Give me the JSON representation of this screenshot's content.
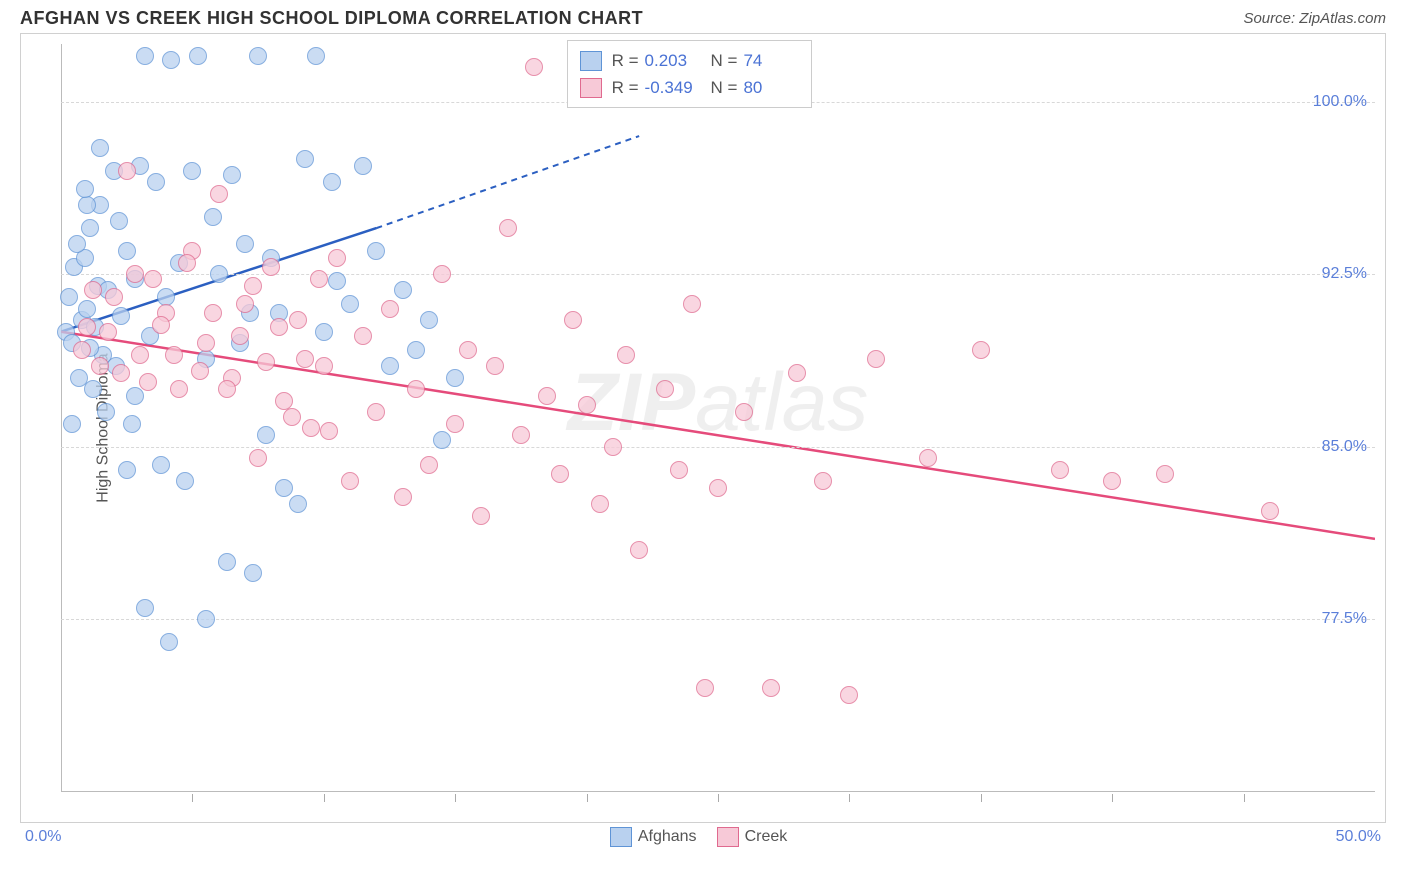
{
  "title": "AFGHAN VS CREEK HIGH SCHOOL DIPLOMA CORRELATION CHART",
  "source": "Source: ZipAtlas.com",
  "ylabel": "High School Diploma",
  "watermark_bold": "ZIP",
  "watermark_rest": "atlas",
  "chart": {
    "type": "scatter",
    "xlim": [
      0,
      50
    ],
    "ylim": [
      70,
      102.5
    ],
    "xtick_step": 5,
    "x_axis_min_label": "0.0%",
    "x_axis_max_label": "50.0%",
    "ytick_labels": [
      "77.5%",
      "85.0%",
      "92.5%",
      "100.0%"
    ],
    "ytick_values": [
      77.5,
      85.0,
      92.5,
      100.0
    ],
    "grid_color": "#d8d8d8",
    "background_color": "#ffffff",
    "marker_size": 18,
    "series": [
      {
        "name": "Afghans",
        "legend_label": "Afghans",
        "color_fill": "#b9d1ef",
        "color_stroke": "#5f94d6",
        "r_value": "0.203",
        "n_value": "74",
        "trend": {
          "x1": 0,
          "y1": 90,
          "x2": 12,
          "y2": 94.5,
          "dash_to_x": 22,
          "dash_to_y": 98.5,
          "color": "#2b5fc1"
        },
        "points": [
          [
            0.2,
            90
          ],
          [
            0.3,
            91.5
          ],
          [
            0.4,
            89.5
          ],
          [
            0.5,
            92.8
          ],
          [
            0.7,
            88
          ],
          [
            0.8,
            90.5
          ],
          [
            0.9,
            93.2
          ],
          [
            1.0,
            91
          ],
          [
            1.1,
            94.5
          ],
          [
            1.2,
            87.5
          ],
          [
            1.3,
            90.2
          ],
          [
            1.4,
            92
          ],
          [
            1.5,
            95.5
          ],
          [
            1.6,
            89
          ],
          [
            1.8,
            91.8
          ],
          [
            2.0,
            97
          ],
          [
            2.1,
            88.5
          ],
          [
            2.3,
            90.7
          ],
          [
            2.5,
            93.5
          ],
          [
            2.7,
            86
          ],
          [
            2.8,
            92.3
          ],
          [
            3.0,
            97.2
          ],
          [
            3.2,
            102
          ],
          [
            3.4,
            89.8
          ],
          [
            3.6,
            96.5
          ],
          [
            3.8,
            84.2
          ],
          [
            4.0,
            91.5
          ],
          [
            4.2,
            101.8
          ],
          [
            4.5,
            93
          ],
          [
            4.7,
            83.5
          ],
          [
            5.0,
            97
          ],
          [
            5.2,
            102
          ],
          [
            5.5,
            88.8
          ],
          [
            5.8,
            95
          ],
          [
            6.0,
            92.5
          ],
          [
            6.3,
            80
          ],
          [
            6.5,
            96.8
          ],
          [
            6.8,
            89.5
          ],
          [
            7.0,
            93.8
          ],
          [
            7.3,
            79.5
          ],
          [
            7.5,
            102
          ],
          [
            7.8,
            85.5
          ],
          [
            8.0,
            93.2
          ],
          [
            8.3,
            90.8
          ],
          [
            8.5,
            83.2
          ],
          [
            9.0,
            82.5
          ],
          [
            9.3,
            97.5
          ],
          [
            9.7,
            102
          ],
          [
            10.0,
            90
          ],
          [
            10.3,
            96.5
          ],
          [
            10.5,
            92.2
          ],
          [
            11.0,
            91.2
          ],
          [
            11.5,
            97.2
          ],
          [
            12.0,
            93.5
          ],
          [
            12.5,
            88.5
          ],
          [
            13.0,
            91.8
          ],
          [
            13.5,
            89.2
          ],
          [
            14.0,
            90.5
          ],
          [
            14.5,
            85.3
          ],
          [
            15.0,
            88
          ],
          [
            2.5,
            84
          ],
          [
            3.2,
            78
          ],
          [
            4.1,
            76.5
          ],
          [
            1.0,
            95.5
          ],
          [
            1.5,
            98
          ],
          [
            0.6,
            93.8
          ],
          [
            0.9,
            96.2
          ],
          [
            2.2,
            94.8
          ],
          [
            1.7,
            86.5
          ],
          [
            2.8,
            87.2
          ],
          [
            5.5,
            77.5
          ],
          [
            7.2,
            90.8
          ],
          [
            0.4,
            86
          ],
          [
            1.1,
            89.3
          ]
        ]
      },
      {
        "name": "Creek",
        "legend_label": "Creek",
        "color_fill": "#f7c9d7",
        "color_stroke": "#e06a8f",
        "r_value": "-0.349",
        "n_value": "80",
        "trend": {
          "x1": 0,
          "y1": 90,
          "x2": 50,
          "y2": 81,
          "color": "#e54b7b"
        },
        "points": [
          [
            1.0,
            90.2
          ],
          [
            1.5,
            88.5
          ],
          [
            2.0,
            91.5
          ],
          [
            2.5,
            97
          ],
          [
            3.0,
            89
          ],
          [
            3.5,
            92.3
          ],
          [
            4.0,
            90.8
          ],
          [
            4.5,
            87.5
          ],
          [
            5.0,
            93.5
          ],
          [
            5.5,
            89.5
          ],
          [
            6.0,
            96
          ],
          [
            6.5,
            88
          ],
          [
            7.0,
            91.2
          ],
          [
            7.5,
            84.5
          ],
          [
            8.0,
            92.8
          ],
          [
            8.5,
            87
          ],
          [
            9.0,
            90.5
          ],
          [
            9.5,
            85.8
          ],
          [
            10.0,
            88.5
          ],
          [
            10.5,
            93.2
          ],
          [
            11.0,
            83.5
          ],
          [
            11.5,
            89.8
          ],
          [
            12.0,
            86.5
          ],
          [
            12.5,
            91
          ],
          [
            13.0,
            82.8
          ],
          [
            13.5,
            87.5
          ],
          [
            14.0,
            84.2
          ],
          [
            14.5,
            92.5
          ],
          [
            15.0,
            86
          ],
          [
            15.5,
            89.2
          ],
          [
            16.0,
            82
          ],
          [
            16.5,
            88.5
          ],
          [
            17.0,
            94.5
          ],
          [
            17.5,
            85.5
          ],
          [
            18.0,
            101.5
          ],
          [
            18.5,
            87.2
          ],
          [
            19.0,
            83.8
          ],
          [
            19.5,
            90.5
          ],
          [
            20.0,
            86.8
          ],
          [
            20.5,
            82.5
          ],
          [
            21.0,
            85
          ],
          [
            21.5,
            89
          ],
          [
            22.0,
            80.5
          ],
          [
            23.0,
            87.5
          ],
          [
            23.5,
            84
          ],
          [
            24.0,
            91.2
          ],
          [
            25.0,
            83.2
          ],
          [
            26.0,
            86.5
          ],
          [
            27.0,
            74.5
          ],
          [
            28.0,
            88.2
          ],
          [
            29.0,
            83.5
          ],
          [
            30.0,
            74.2
          ],
          [
            31.0,
            88.8
          ],
          [
            33.0,
            84.5
          ],
          [
            35.0,
            89.2
          ],
          [
            38.0,
            84
          ],
          [
            40.0,
            83.5
          ],
          [
            42.0,
            83.8
          ],
          [
            46.0,
            82.2
          ],
          [
            0.8,
            89.2
          ],
          [
            1.2,
            91.8
          ],
          [
            1.8,
            90
          ],
          [
            2.3,
            88.2
          ],
          [
            2.8,
            92.5
          ],
          [
            3.3,
            87.8
          ],
          [
            3.8,
            90.3
          ],
          [
            4.3,
            89
          ],
          [
            4.8,
            93
          ],
          [
            5.3,
            88.3
          ],
          [
            5.8,
            90.8
          ],
          [
            6.3,
            87.5
          ],
          [
            6.8,
            89.8
          ],
          [
            7.3,
            92
          ],
          [
            7.8,
            88.7
          ],
          [
            8.3,
            90.2
          ],
          [
            8.8,
            86.3
          ],
          [
            9.3,
            88.8
          ],
          [
            9.8,
            92.3
          ],
          [
            24.5,
            74.5
          ],
          [
            10.2,
            85.7
          ]
        ]
      }
    ]
  },
  "stats_box": {
    "r_label": "R =",
    "n_label": "N ="
  }
}
